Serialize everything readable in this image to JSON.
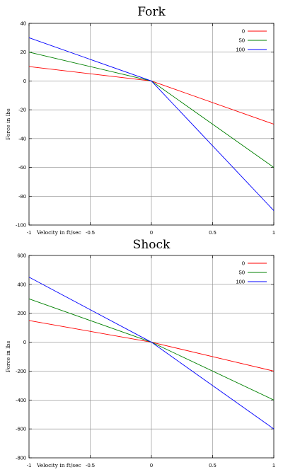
{
  "chart_data": [
    {
      "type": "line",
      "title": "Fork",
      "xlabel": "Velocity in ft/sec",
      "ylabel": "Force in lbs",
      "xlim": [
        -1,
        1
      ],
      "ylim": [
        -100,
        40
      ],
      "x_ticks": [
        "-1",
        "-0.5",
        "0",
        "0.5",
        "1"
      ],
      "y_ticks": [
        "40",
        "20",
        "0",
        "-20",
        "-40",
        "-60",
        "-80",
        "-100"
      ],
      "grid": true,
      "legend_position": "top-right",
      "series": [
        {
          "name": "0",
          "color": "#ff0000",
          "x": [
            -1,
            0,
            1
          ],
          "y": [
            10,
            0,
            -30
          ]
        },
        {
          "name": "50",
          "color": "#008000",
          "x": [
            -1,
            0,
            1
          ],
          "y": [
            20,
            0,
            -60
          ]
        },
        {
          "name": "100",
          "color": "#0000ff",
          "x": [
            -1,
            0,
            1
          ],
          "y": [
            30,
            0,
            -90
          ]
        }
      ]
    },
    {
      "type": "line",
      "title": "Shock",
      "xlabel": "Velocity in ft/sec",
      "ylabel": "Force in lbs",
      "xlim": [
        -1,
        1
      ],
      "ylim": [
        -800,
        600
      ],
      "x_ticks": [
        "-1",
        "-0.5",
        "0",
        "0.5",
        "1"
      ],
      "y_ticks": [
        "600",
        "400",
        "200",
        "0",
        "-200",
        "-400",
        "-600",
        "-800"
      ],
      "grid": true,
      "legend_position": "top-right",
      "series": [
        {
          "name": "0",
          "color": "#ff0000",
          "x": [
            -1,
            0,
            1
          ],
          "y": [
            150,
            0,
            -200
          ]
        },
        {
          "name": "50",
          "color": "#008000",
          "x": [
            -1,
            0,
            1
          ],
          "y": [
            300,
            0,
            -400
          ]
        },
        {
          "name": "100",
          "color": "#0000ff",
          "x": [
            -1,
            0,
            1
          ],
          "y": [
            450,
            0,
            -600
          ]
        }
      ]
    }
  ]
}
